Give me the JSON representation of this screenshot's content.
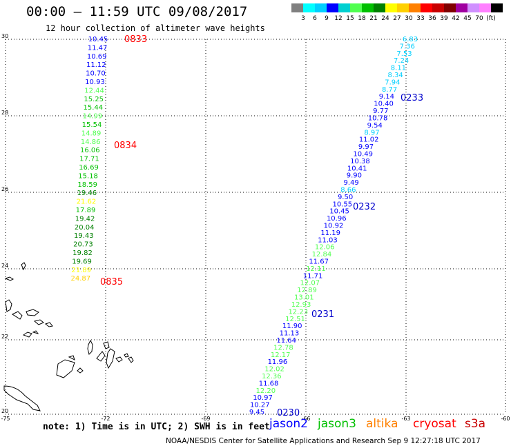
{
  "title": "00:00 – 11:59 UTC 09/08/2017",
  "subtitle": "12 hour collection of altimeter wave heights",
  "legend": {
    "colors": [
      "#808080",
      "#00ffff",
      "#00cfff",
      "#0000ff",
      "#00d0d0",
      "#50ff50",
      "#00c000",
      "#008000",
      "#ffff00",
      "#ffd000",
      "#ff8000",
      "#ff0000",
      "#c80000",
      "#800000",
      "#a000a0",
      "#d090ff",
      "#ff80ff",
      "#000000"
    ],
    "labels": [
      "3",
      "6",
      "9",
      "12",
      "15",
      "18",
      "21",
      "24",
      "27",
      "30",
      "33",
      "36",
      "39",
      "42",
      "45",
      "70",
      "(ft)"
    ]
  },
  "axes": {
    "lat_ticks": [
      "30",
      "28",
      "26",
      "24",
      "22",
      "20"
    ],
    "lon_ticks": [
      "-75",
      "-72",
      "-69",
      "-66",
      "-63",
      "-60"
    ]
  },
  "tracks": [
    {
      "labels": [
        {
          "t": "10.45",
          "c": "#0000ff"
        },
        {
          "t": "11.47",
          "c": "#0000ff"
        },
        {
          "t": "10.69",
          "c": "#0000ff"
        },
        {
          "t": "11.12",
          "c": "#0000ff"
        },
        {
          "t": "10.70",
          "c": "#0000ff"
        },
        {
          "t": "10.93",
          "c": "#0000ff"
        },
        {
          "t": "12.44",
          "c": "#50ff50"
        },
        {
          "t": "15.25",
          "c": "#00c000"
        },
        {
          "t": "15.44",
          "c": "#00c000"
        },
        {
          "t": "14.99",
          "c": "#50ff50"
        },
        {
          "t": "15.54",
          "c": "#00c000"
        },
        {
          "t": "14.89",
          "c": "#50ff50"
        },
        {
          "t": "14.86",
          "c": "#50ff50"
        },
        {
          "t": "16.06",
          "c": "#00c000"
        },
        {
          "t": "17.71",
          "c": "#00c000"
        },
        {
          "t": "16.69",
          "c": "#00c000"
        },
        {
          "t": "15.18",
          "c": "#00c000"
        },
        {
          "t": "18.59",
          "c": "#00c000"
        },
        {
          "t": "19.46",
          "c": "#008000"
        },
        {
          "t": "21.62",
          "c": "#ffff00"
        },
        {
          "t": "17.89",
          "c": "#00c000"
        },
        {
          "t": "19.42",
          "c": "#008000"
        },
        {
          "t": "20.04",
          "c": "#008000"
        },
        {
          "t": "19.43",
          "c": "#008000"
        },
        {
          "t": "20.73",
          "c": "#008000"
        },
        {
          "t": "19.82",
          "c": "#008000"
        },
        {
          "t": "19.69",
          "c": "#008000"
        },
        {
          "t": "21.89",
          "c": "#ffff00"
        },
        {
          "t": "24.87",
          "c": "#ffd000"
        }
      ],
      "times": [
        {
          "t": "0833",
          "c": "#ff0000"
        },
        {
          "t": "0834",
          "c": "#ff0000"
        },
        {
          "t": "0835",
          "c": "#ff0000"
        }
      ]
    },
    {
      "labels": [
        {
          "t": "6.83",
          "c": "#00cfff"
        },
        {
          "t": "7.36",
          "c": "#00cfff"
        },
        {
          "t": "7.53",
          "c": "#00cfff"
        },
        {
          "t": "7.24",
          "c": "#00cfff"
        },
        {
          "t": "8.11",
          "c": "#00cfff"
        },
        {
          "t": "8.34",
          "c": "#00cfff"
        },
        {
          "t": "7.94",
          "c": "#00cfff"
        },
        {
          "t": "8.77",
          "c": "#00cfff"
        },
        {
          "t": "9.14",
          "c": "#0000ff"
        },
        {
          "t": "10.40",
          "c": "#0000ff"
        },
        {
          "t": "9.77",
          "c": "#0000ff"
        },
        {
          "t": "10.78",
          "c": "#0000ff"
        },
        {
          "t": "9.54",
          "c": "#0000ff"
        },
        {
          "t": "8.97",
          "c": "#00cfff"
        },
        {
          "t": "11.02",
          "c": "#0000ff"
        },
        {
          "t": "9.97",
          "c": "#0000ff"
        },
        {
          "t": "10.49",
          "c": "#0000ff"
        },
        {
          "t": "10.38",
          "c": "#0000ff"
        },
        {
          "t": "10.41",
          "c": "#0000ff"
        },
        {
          "t": "9.90",
          "c": "#0000ff"
        },
        {
          "t": "9.49",
          "c": "#0000ff"
        },
        {
          "t": "8.66",
          "c": "#00cfff"
        },
        {
          "t": "9.50",
          "c": "#0000ff"
        },
        {
          "t": "10.55",
          "c": "#0000ff"
        },
        {
          "t": "10.45",
          "c": "#0000ff"
        },
        {
          "t": "10.96",
          "c": "#0000ff"
        },
        {
          "t": "10.92",
          "c": "#0000ff"
        },
        {
          "t": "11.19",
          "c": "#0000ff"
        },
        {
          "t": "11.03",
          "c": "#0000ff"
        },
        {
          "t": "12.06",
          "c": "#50ff50"
        },
        {
          "t": "12.84",
          "c": "#50ff50"
        },
        {
          "t": "11.67",
          "c": "#0000ff"
        },
        {
          "t": "12.11",
          "c": "#50ff50"
        },
        {
          "t": "11.71",
          "c": "#0000ff"
        },
        {
          "t": "12.07",
          "c": "#50ff50"
        },
        {
          "t": "12.89",
          "c": "#50ff50"
        },
        {
          "t": "13.01",
          "c": "#50ff50"
        },
        {
          "t": "12.93",
          "c": "#50ff50"
        },
        {
          "t": "12.23",
          "c": "#50ff50"
        },
        {
          "t": "12.51",
          "c": "#50ff50"
        },
        {
          "t": "11.90",
          "c": "#0000ff"
        },
        {
          "t": "11.13",
          "c": "#0000ff"
        },
        {
          "t": "11.64",
          "c": "#0000ff"
        },
        {
          "t": "12.78",
          "c": "#50ff50"
        },
        {
          "t": "12.17",
          "c": "#50ff50"
        },
        {
          "t": "11.96",
          "c": "#0000ff"
        },
        {
          "t": "12.02",
          "c": "#50ff50"
        },
        {
          "t": "12.36",
          "c": "#50ff50"
        },
        {
          "t": "11.68",
          "c": "#0000ff"
        },
        {
          "t": "12.20",
          "c": "#50ff50"
        },
        {
          "t": "10.97",
          "c": "#0000ff"
        },
        {
          "t": "10.27",
          "c": "#0000ff"
        },
        {
          "t": "9.45",
          "c": "#0000ff"
        }
      ],
      "times": [
        {
          "t": "0233",
          "c": "#0000cc"
        },
        {
          "t": "0232",
          "c": "#0000cc"
        },
        {
          "t": "0231",
          "c": "#0000cc"
        },
        {
          "t": "0230",
          "c": "#0000cc"
        }
      ]
    }
  ],
  "note": "note: 1) Time is in UTC; 2) SWH is in feet",
  "satellites": [
    {
      "name": "jason2",
      "color": "#0000ff"
    },
    {
      "name": "jason3",
      "color": "#00c000"
    },
    {
      "name": "altika",
      "color": "#ff8000"
    },
    {
      "name": "cryosat",
      "color": "#ff0000"
    },
    {
      "name": "s3a",
      "color": "#c80000"
    }
  ],
  "credit": "NOAA/NESDIS Center for Satellite Applications and Research   Sep  9 12:27:18 UTC 2017"
}
